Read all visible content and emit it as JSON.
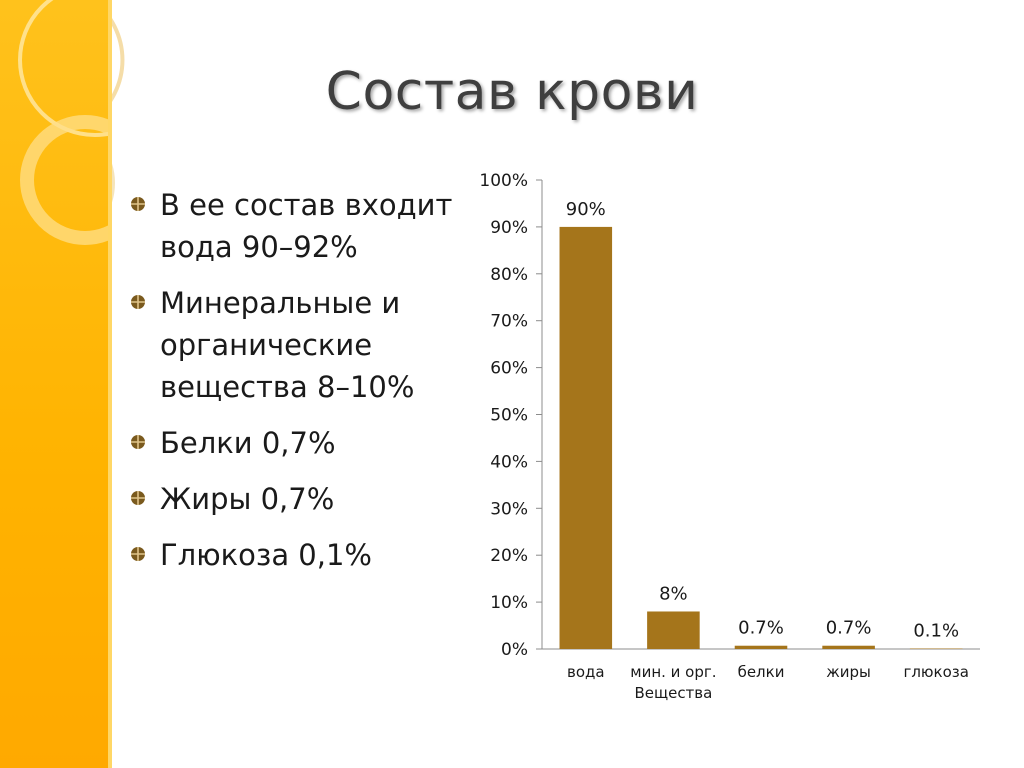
{
  "slide": {
    "title": "Состав крови",
    "bullets": [
      "В ее состав входит вода  90–92%",
      " Минеральные и органические вещества  8–10%",
      " Белки 0,7%",
      "Жиры  0,7%",
      " Глюкоза 0,1%"
    ],
    "accent_color": "#ffb300",
    "bullet_icon": "segmented-circle-icon"
  },
  "chart_data": {
    "type": "bar",
    "categories": [
      "вода",
      "мин. и орг. Вещества",
      "белки",
      "жиры",
      "глюкоза"
    ],
    "category_lines": [
      [
        "вода"
      ],
      [
        "мин. и орг.",
        "Вещества"
      ],
      [
        "белки"
      ],
      [
        "жиры"
      ],
      [
        "глюкоза"
      ]
    ],
    "values": [
      90,
      8,
      0.7,
      0.7,
      0.1
    ],
    "data_labels": [
      "90%",
      "8%",
      "0.7%",
      "0.7%",
      "0.1%"
    ],
    "ylim": [
      0,
      100
    ],
    "yticks": [
      0,
      10,
      20,
      30,
      40,
      50,
      60,
      70,
      80,
      90,
      100
    ],
    "ytick_labels": [
      "0%",
      "10%",
      "20%",
      "30%",
      "40%",
      "50%",
      "60%",
      "70%",
      "80%",
      "90%",
      "100%"
    ],
    "bar_color": "#a5751b",
    "grid": false,
    "legend": "none"
  }
}
